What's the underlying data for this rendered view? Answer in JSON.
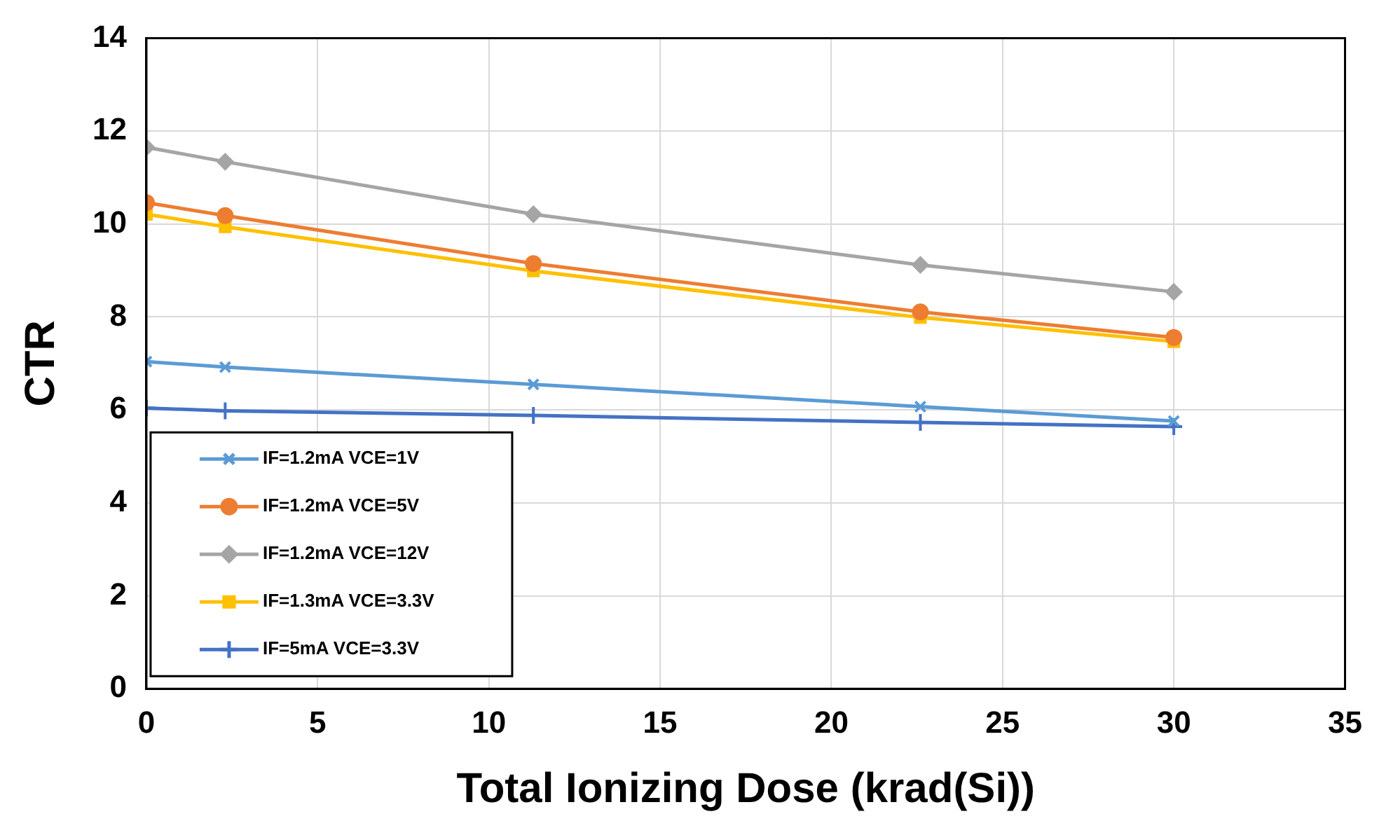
{
  "chart_data": {
    "type": "line",
    "xlabel": "Total Ionizing Dose (krad(Si))",
    "ylabel": "CTR",
    "x": [
      0,
      2.3,
      11.3,
      22.6,
      30
    ],
    "xlim": [
      0,
      35
    ],
    "xticks": [
      0,
      5,
      10,
      15,
      20,
      25,
      30,
      35
    ],
    "ylim": [
      0,
      14
    ],
    "yticks": [
      0,
      2,
      4,
      6,
      8,
      10,
      12,
      14
    ],
    "grid": true,
    "legend": "bottom left",
    "series": [
      {
        "name": "IF=1.2mA VCE=1V",
        "color": "#5b9bd5",
        "marker": "cross",
        "values": [
          7.04,
          6.92,
          6.55,
          6.07,
          5.76
        ]
      },
      {
        "name": "IF=1.2mA VCE=5V",
        "color": "#ed7d31",
        "marker": "circle",
        "values": [
          10.46,
          10.18,
          9.15,
          8.11,
          7.56
        ]
      },
      {
        "name": "IF=1.2mA VCE=12V",
        "color": "#a5a5a5",
        "marker": "diamond",
        "values": [
          11.65,
          11.34,
          10.21,
          9.12,
          8.54
        ]
      },
      {
        "name": "IF=1.3mA VCE=3.3V",
        "color": "#ffc000",
        "marker": "square",
        "values": [
          10.21,
          9.94,
          8.99,
          7.99,
          7.47
        ]
      },
      {
        "name": "IF=5mA VCE=3.3V",
        "color": "#4472c4",
        "marker": "plus",
        "values": [
          6.04,
          5.98,
          5.88,
          5.73,
          5.64
        ]
      }
    ]
  }
}
